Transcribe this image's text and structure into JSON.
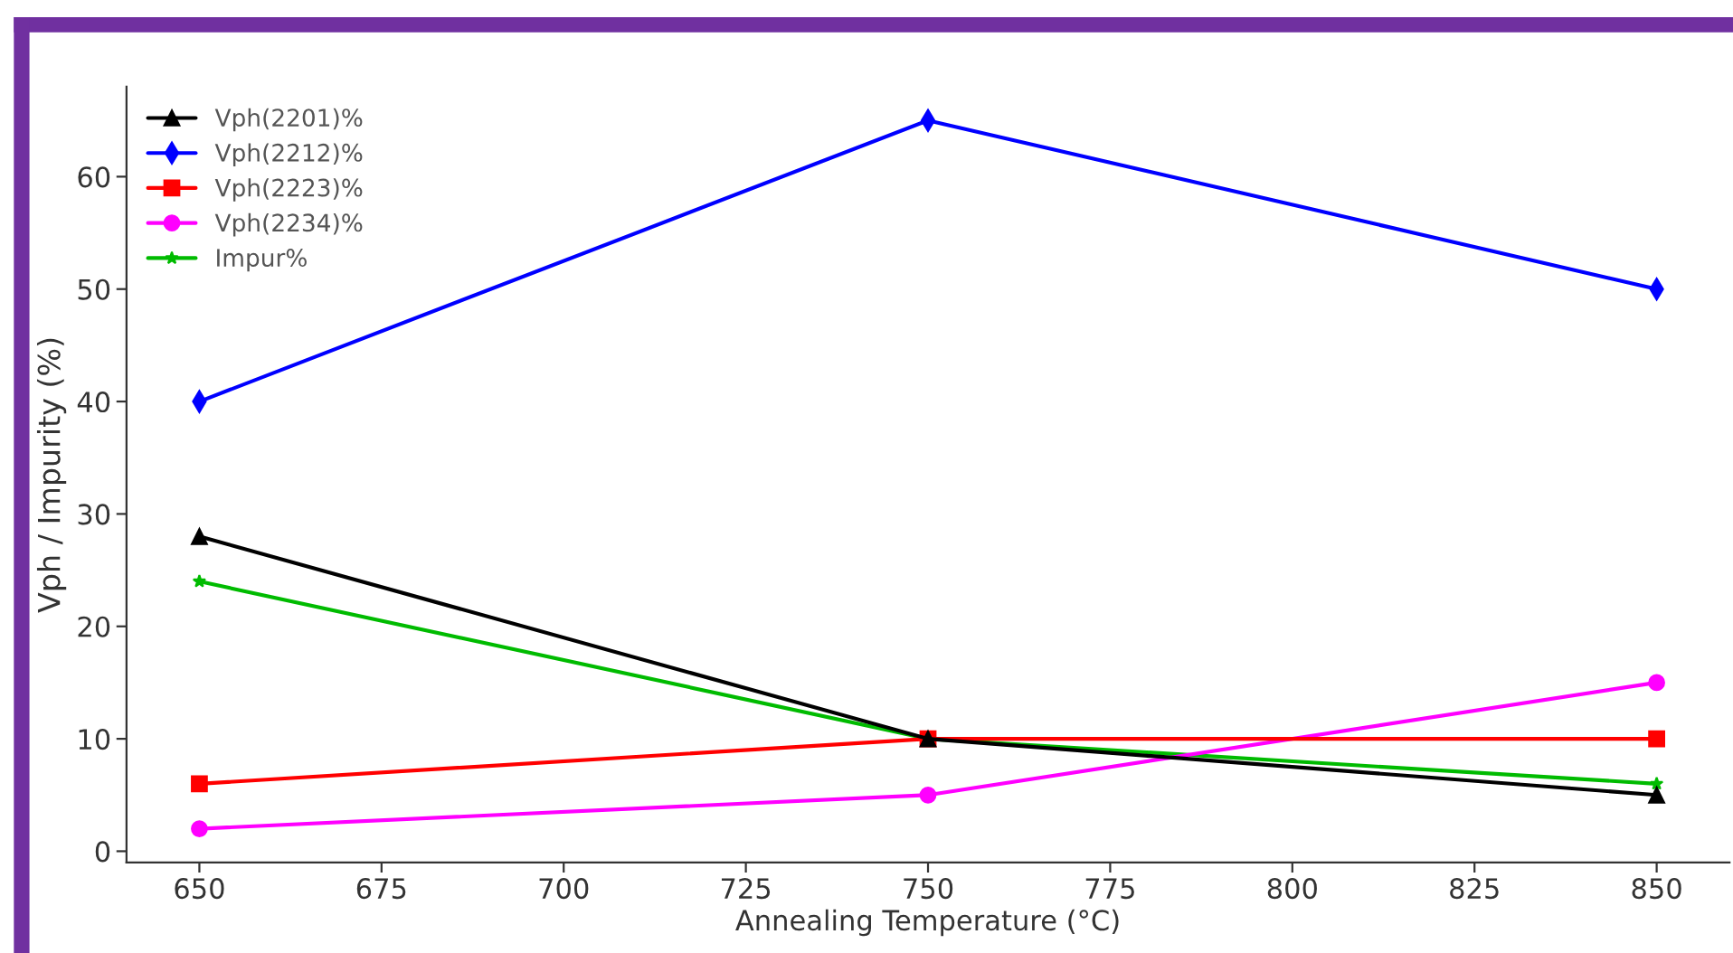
{
  "chart_data": {
    "type": "line",
    "xlabel": "Annealing Temperature (°C)",
    "ylabel": "Vph / Impurity (%)",
    "x": [
      650,
      750,
      850
    ],
    "xlim": [
      640,
      860
    ],
    "xticks": [
      650,
      675,
      700,
      725,
      750,
      775,
      800,
      825,
      850
    ],
    "ylim": [
      -1,
      68
    ],
    "yticks": [
      0,
      10,
      20,
      30,
      40,
      50,
      60
    ],
    "grid": false,
    "legend": "top left",
    "line_style": "solid",
    "series": [
      {
        "name": "Vph(2201)%",
        "color": "#000000",
        "marker": "triangle",
        "values": [
          28,
          10,
          5
        ]
      },
      {
        "name": "Vph(2212)%",
        "color": "#0000ff",
        "marker": "diamond",
        "values": [
          40,
          65,
          50
        ]
      },
      {
        "name": "Vph(2223)%",
        "color": "#ff0000",
        "marker": "square",
        "values": [
          6,
          10,
          10
        ]
      },
      {
        "name": "Vph(2234)%",
        "color": "#ff00ff",
        "marker": "circle",
        "values": [
          2,
          5,
          15
        ]
      },
      {
        "name": "Impur%",
        "color": "#00bb00",
        "marker": "star",
        "values": [
          24,
          10,
          6
        ]
      }
    ]
  }
}
